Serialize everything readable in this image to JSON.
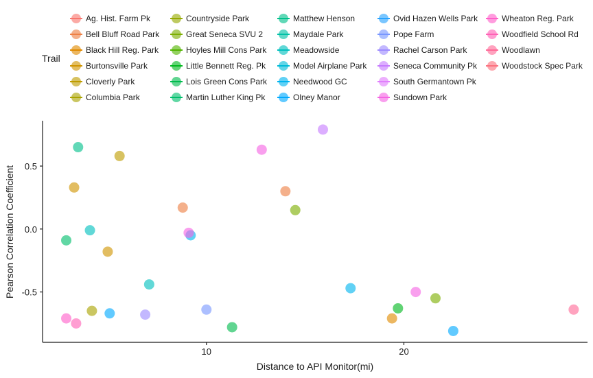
{
  "chart_data": {
    "type": "scatter",
    "title": "",
    "xlabel": "Distance to API Monitor(mi)",
    "ylabel": "Pearson Correlation Coefficient",
    "xlim": [
      1.7,
      29.3
    ],
    "ylim": [
      -0.9,
      0.86
    ],
    "xticks": [
      10,
      20
    ],
    "yticks": [
      -0.5,
      0.0,
      0.5
    ],
    "ytick_labels": [
      "-0.5",
      "0.0",
      "0.5"
    ],
    "grid": false,
    "legend_title": "Trail",
    "legend_position": "top",
    "series": [
      {
        "name": "Ag. Hist. Farm Pk",
        "color": "#F8766D",
        "points": []
      },
      {
        "name": "Bell Bluff Road Park",
        "color": "#EE8044",
        "points": [
          [
            8.8,
            0.17
          ],
          [
            14.0,
            0.3
          ]
        ]
      },
      {
        "name": "Black Hill Reg. Park",
        "color": "#E18A00",
        "points": [
          [
            19.4,
            -0.71
          ]
        ]
      },
      {
        "name": "Burtonsville Park",
        "color": "#D09400",
        "points": [
          [
            3.3,
            0.33
          ],
          [
            5.0,
            -0.18
          ]
        ]
      },
      {
        "name": "Cloverly Park",
        "color": "#BE9C00",
        "points": [
          [
            5.6,
            0.58
          ]
        ]
      },
      {
        "name": "Columbia Park",
        "color": "#AAA300",
        "points": [
          [
            4.2,
            -0.65
          ]
        ]
      },
      {
        "name": "Countryside Park",
        "color": "#96A900",
        "points": []
      },
      {
        "name": "Great Seneca SVU 2",
        "color": "#7CAE00",
        "points": [
          [
            14.5,
            0.15
          ],
          [
            21.6,
            -0.55
          ]
        ]
      },
      {
        "name": "Hoyles Mill Cons Park",
        "color": "#53B400",
        "points": []
      },
      {
        "name": "Little Bennett Reg. Pk",
        "color": "#00B81F",
        "points": [
          [
            19.7,
            -0.63
          ]
        ]
      },
      {
        "name": "Lois Green Cons Park",
        "color": "#00BB4E",
        "points": [
          [
            11.3,
            -0.78
          ]
        ]
      },
      {
        "name": "Martin Luther King Pk",
        "color": "#00BE6C",
        "points": [
          [
            2.9,
            -0.09
          ]
        ]
      },
      {
        "name": "Matthew Henson",
        "color": "#00C08B",
        "points": [
          [
            3.5,
            0.65
          ]
        ]
      },
      {
        "name": "Maydale Park",
        "color": "#00C1A7",
        "points": []
      },
      {
        "name": "Meadowside",
        "color": "#00C0BF",
        "points": [
          [
            4.1,
            -0.01
          ],
          [
            7.1,
            -0.44
          ]
        ]
      },
      {
        "name": "Model Airplane Park",
        "color": "#00BCD8",
        "points": []
      },
      {
        "name": "Needwood GC",
        "color": "#00B4EF",
        "points": [
          [
            9.2,
            -0.05
          ],
          [
            17.3,
            -0.47
          ]
        ]
      },
      {
        "name": "Olney Manor",
        "color": "#00A9FF",
        "points": [
          [
            5.1,
            -0.67
          ],
          [
            22.5,
            -0.81
          ]
        ]
      },
      {
        "name": "Ovid Hazen Wells Park",
        "color": "#29A3FF",
        "points": []
      },
      {
        "name": "Pope Farm",
        "color": "#7997FF",
        "points": [
          [
            10.0,
            -0.64
          ]
        ]
      },
      {
        "name": "Rachel Carson Park",
        "color": "#9E8CFF",
        "points": [
          [
            6.9,
            -0.68
          ]
        ]
      },
      {
        "name": "Seneca Community Pk",
        "color": "#C77CFF",
        "points": [
          [
            15.9,
            0.79
          ]
        ]
      },
      {
        "name": "South Germantown Pk",
        "color": "#E07EFC",
        "points": []
      },
      {
        "name": "Sundown Park",
        "color": "#F564E3",
        "points": [
          [
            9.1,
            -0.03
          ],
          [
            12.8,
            0.63
          ],
          [
            20.6,
            -0.5
          ]
        ]
      },
      {
        "name": "Wheaton Reg. Park",
        "color": "#FF5FC9",
        "points": [
          [
            2.9,
            -0.71
          ]
        ]
      },
      {
        "name": "Woodfield School Rd",
        "color": "#FF63B6",
        "points": [
          [
            3.4,
            -0.75
          ]
        ]
      },
      {
        "name": "Woodlawn",
        "color": "#FF6A98",
        "points": [
          [
            28.6,
            -0.64
          ]
        ]
      },
      {
        "name": "Woodstock Spec Park",
        "color": "#FB727F",
        "points": []
      }
    ]
  }
}
